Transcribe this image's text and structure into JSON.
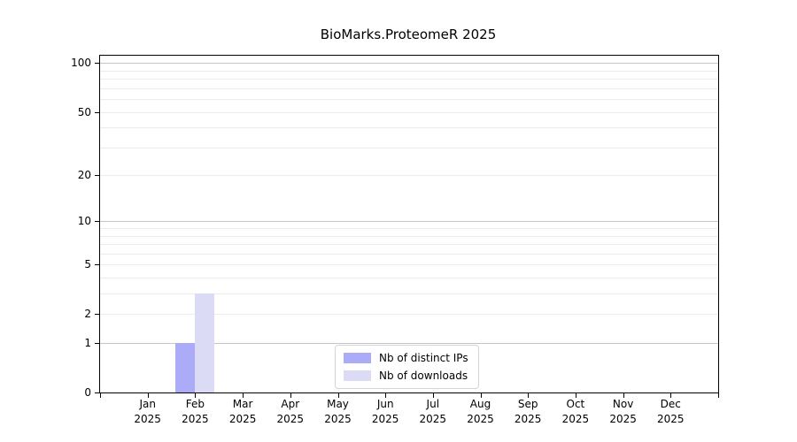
{
  "chart_data": {
    "type": "bar",
    "title": "BioMarks.ProteomeR 2025",
    "categories": [
      "Jan",
      "Feb",
      "Mar",
      "Apr",
      "May",
      "Jun",
      "Jul",
      "Aug",
      "Sep",
      "Oct",
      "Nov",
      "Dec"
    ],
    "category_year": "2025",
    "series": [
      {
        "name": "Nb of distinct IPs",
        "color": "#acabf7",
        "values": [
          0,
          1,
          0,
          0,
          0,
          0,
          0,
          0,
          0,
          0,
          0,
          0
        ]
      },
      {
        "name": "Nb of downloads",
        "color": "#dbdbf6",
        "values": [
          0,
          3,
          0,
          0,
          0,
          0,
          0,
          0,
          0,
          0,
          0,
          0
        ]
      }
    ],
    "yscale": "log1p",
    "ylim": [
      0,
      111
    ],
    "yticks": [
      0,
      1,
      2,
      5,
      10,
      20,
      50,
      100
    ],
    "major_gridlines": [
      1,
      10,
      100
    ],
    "minor_gridlines": [
      2,
      3,
      4,
      5,
      6,
      7,
      8,
      9,
      20,
      30,
      40,
      50,
      60,
      70,
      80,
      90
    ],
    "grid": true,
    "legend_position": "lower center",
    "colors": {
      "axis": "#000000",
      "major_grid": "#c5c5c5",
      "minor_grid": "#ececec",
      "legend_border": "#d4d4d4"
    }
  }
}
